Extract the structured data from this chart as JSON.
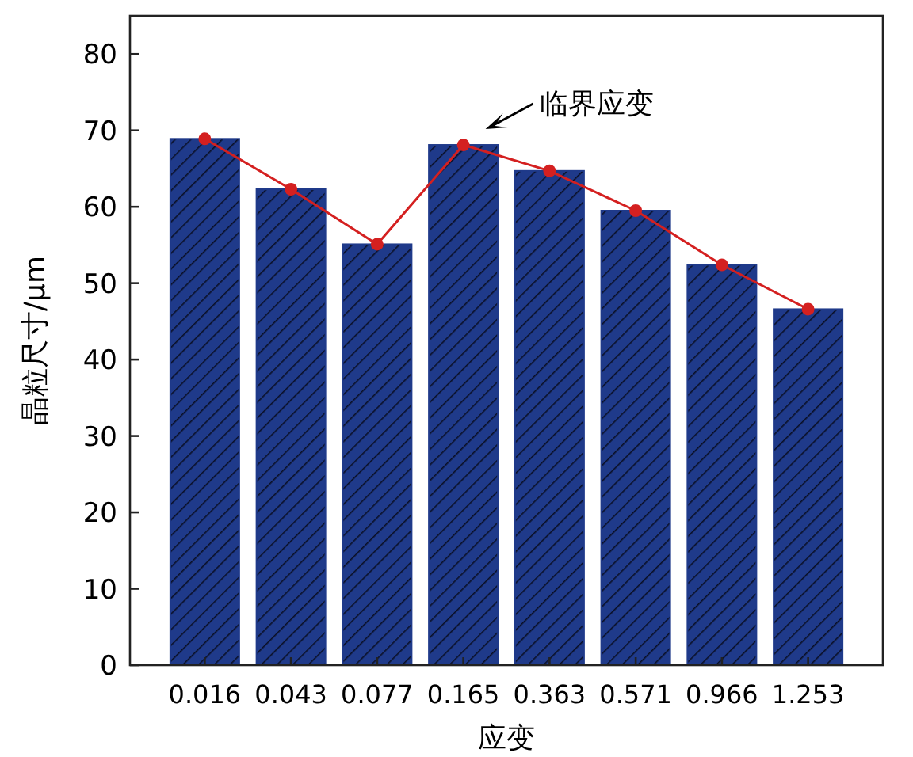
{
  "chart_data": {
    "type": "bar",
    "xlabel": "应变",
    "ylabel": "晶粒尺寸/μm",
    "categories": [
      "0.016",
      "0.043",
      "0.077",
      "0.165",
      "0.363",
      "0.571",
      "0.966",
      "1.253"
    ],
    "series": [
      {
        "color": "#1f3a8a",
        "values": [
          68.9,
          62.3,
          55.1,
          68.1,
          64.7,
          59.5,
          52.4,
          46.6
        ]
      },
      {
        "type": "line",
        "color": "#d42020",
        "marker": "circle",
        "values": [
          68.9,
          62.3,
          55.1,
          68.1,
          64.7,
          59.5,
          52.4,
          46.6
        ]
      }
    ],
    "ylim": [
      0,
      85
    ],
    "yticks": [
      0,
      10,
      20,
      30,
      40,
      50,
      60,
      70,
      80
    ],
    "annotations": [
      {
        "text": "临界应变",
        "x": "0.165",
        "y": 68.1
      }
    ]
  }
}
